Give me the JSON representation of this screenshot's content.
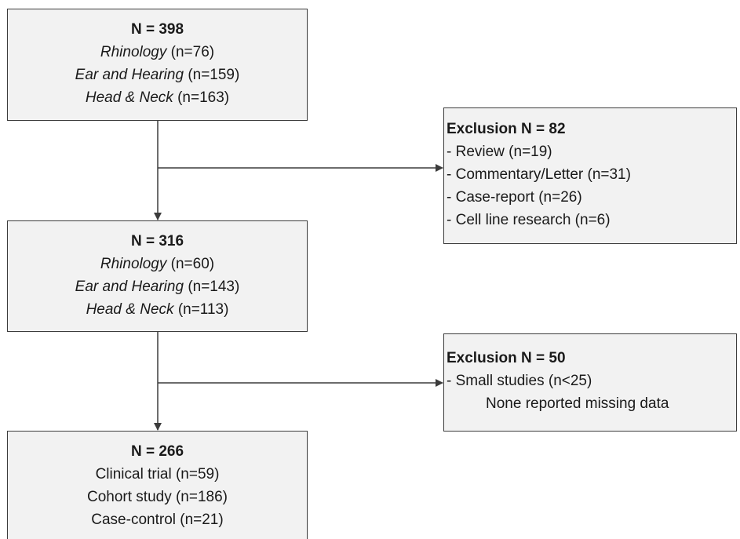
{
  "box1": {
    "title": "N = 398",
    "lines": [
      {
        "label": "Rhinology",
        "count": "(n=76)"
      },
      {
        "label": "Ear and Hearing",
        "count": "(n=159)"
      },
      {
        "label": "Head & Neck",
        "count": "(n=163)"
      }
    ]
  },
  "box2": {
    "title": "N = 316",
    "lines": [
      {
        "label": "Rhinology",
        "count": "(n=60)"
      },
      {
        "label": "Ear and Hearing",
        "count": "(n=143)"
      },
      {
        "label": "Head & Neck",
        "count": "(n=113)"
      }
    ]
  },
  "box3": {
    "title": "N = 266",
    "lines": [
      "Clinical trial (n=59)",
      "Cohort study (n=186)",
      "Case-control (n=21)"
    ]
  },
  "exclusion1": {
    "title": "Exclusion N = 82",
    "items": [
      "- Review (n=19)",
      "- Commentary/Letter (n=31)",
      "- Case-report (n=26)",
      "- Cell line research (n=6)"
    ]
  },
  "exclusion2": {
    "title": "Exclusion N = 50",
    "items": [
      "- Small studies (n<25)"
    ],
    "note": "None reported missing data"
  },
  "colors": {
    "box_fill": "#f2f2f2",
    "box_border": "#3c3c3c",
    "arrow": "#3c3c3c"
  }
}
